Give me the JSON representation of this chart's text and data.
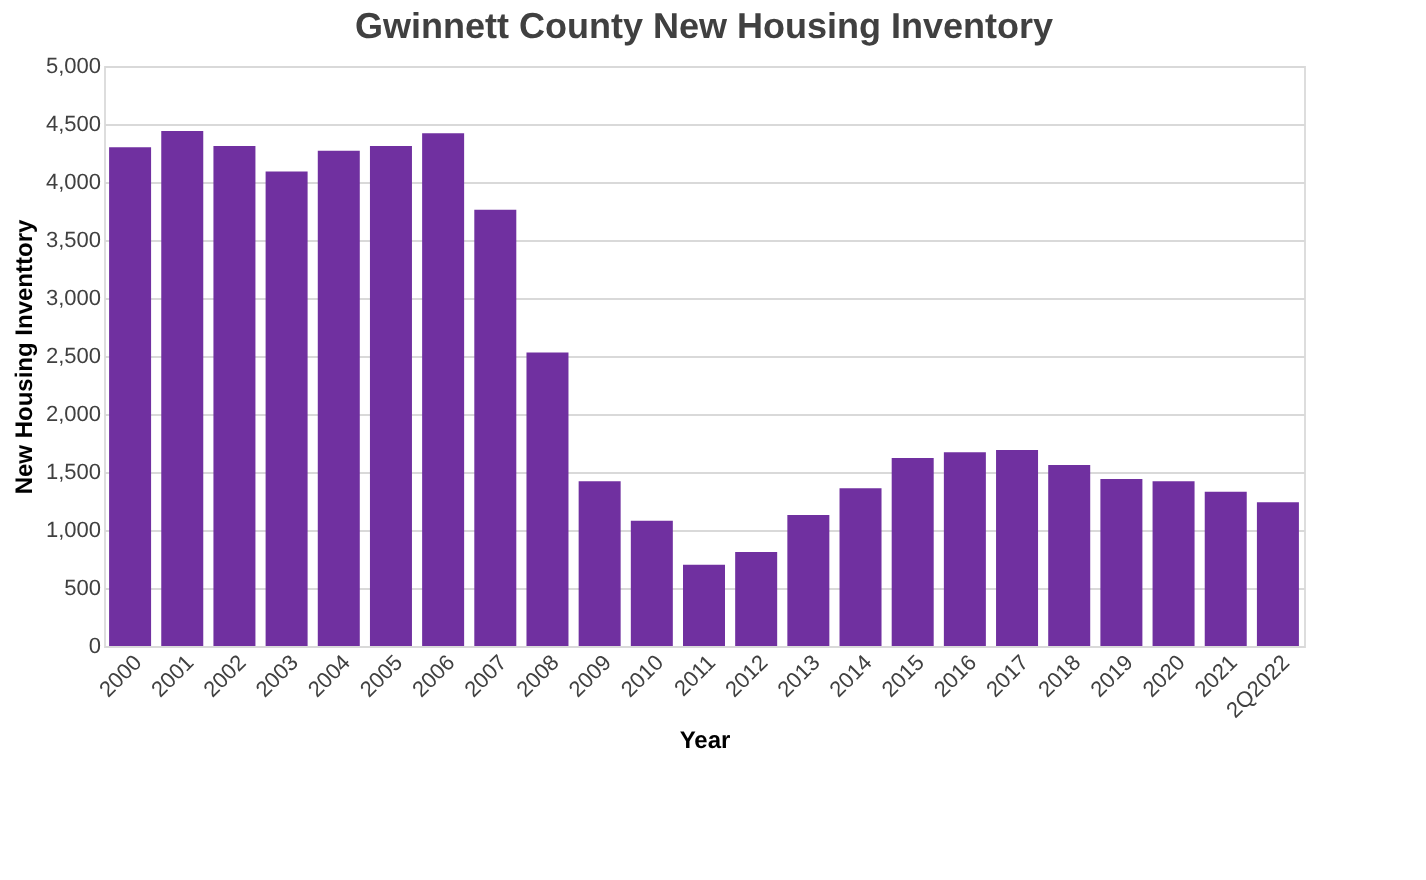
{
  "chart_data": {
    "type": "bar",
    "title": "Gwinnett County New Housing Inventory",
    "xlabel": "Year",
    "ylabel": "New Housing Inventtory",
    "categories": [
      "2000",
      "2001",
      "2002",
      "2003",
      "2004",
      "2005",
      "2006",
      "2007",
      "2008",
      "2009",
      "2010",
      "2011",
      "2012",
      "2013",
      "2014",
      "2015",
      "2016",
      "2017",
      "2018",
      "2019",
      "2020",
      "2021",
      "2Q2022"
    ],
    "series": [
      {
        "color": "#7030a0",
        "values": [
          4300,
          4440,
          4310,
          4090,
          4270,
          4310,
          4420,
          3760,
          2530,
          1420,
          1080,
          700,
          810,
          1130,
          1360,
          1620,
          1670,
          1690,
          1560,
          1440,
          1420,
          1330,
          1240
        ]
      }
    ],
    "ylim": [
      0,
      5000
    ],
    "yticks": [
      0,
      500,
      {
        "value": 1000,
        "label": "1,000"
      },
      {
        "value": 1500,
        "label": "1,500"
      },
      {
        "value": 2000,
        "label": "2,000"
      },
      {
        "value": 2500,
        "label": "2,500"
      },
      {
        "value": 3000,
        "label": "3,000"
      },
      {
        "value": 3500,
        "label": "3,500"
      },
      {
        "value": 4000,
        "label": "4,000"
      },
      {
        "value": 4500,
        "label": "4,500"
      },
      {
        "value": 5000,
        "label": "5,000"
      }
    ],
    "grid": "y",
    "legend": false
  }
}
